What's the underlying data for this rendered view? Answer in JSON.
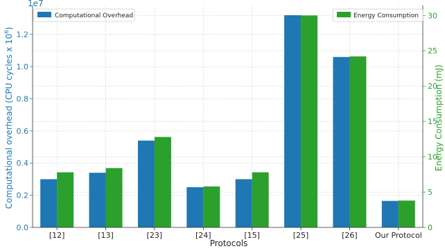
{
  "chart_data": {
    "type": "bar",
    "categories": [
      "[12]",
      "[13]",
      "[23]",
      "[24]",
      "[15]",
      "[25]",
      "[26]",
      "Our Protocol"
    ],
    "series": [
      {
        "name": "Computational Overhead",
        "axis": "left",
        "color": "#1f77b4",
        "values": [
          3.0,
          3.4,
          5.4,
          2.5,
          3.0,
          13.2,
          10.6,
          1.65
        ]
      },
      {
        "name": "Energy Consumption",
        "axis": "right",
        "color": "#2ca02c",
        "values": [
          7.8,
          8.4,
          12.8,
          5.8,
          7.8,
          30.0,
          24.2,
          3.8
        ]
      }
    ],
    "xlabel": "Protocols",
    "ylabel_left": "Computational overhead (CPU cycles x 10",
    "ylabel_left_sup": "6",
    "ylabel_left_close": ")",
    "ylabel_right": "Energy Consumption (mJ)",
    "left_offset_text": "1e7",
    "ylim_left": [
      0,
      13.8
    ],
    "ylim_right": [
      0,
      31.4
    ],
    "yticks_left": [
      0.0,
      0.2,
      0.4,
      0.6,
      0.8,
      1.0,
      1.2
    ],
    "yticks_left_labels": [
      "0.0",
      "0.2",
      "0.4",
      "0.6",
      "0.8",
      "1.0",
      "1.2"
    ],
    "yticks_right": [
      0,
      5,
      10,
      15,
      20,
      25,
      30
    ],
    "yticks_right_labels": [
      "0",
      "5",
      "10",
      "15",
      "20",
      "25",
      "30"
    ],
    "grid": true,
    "legend_left_placement": "top-left",
    "legend_right_placement": "top-right"
  }
}
